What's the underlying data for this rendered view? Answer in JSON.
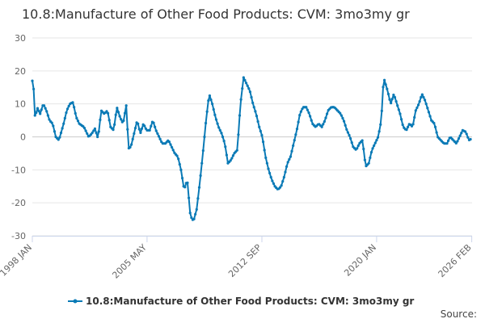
{
  "chart_data": {
    "type": "line",
    "title": "10.8:Manufacture of Other Food Products: CVM: 3mo3my gr",
    "xlabel": "",
    "ylabel": "",
    "x_start_year": 1998.0,
    "x_range": [
      1998.0,
      2026.1
    ],
    "ylim": [
      -30,
      30
    ],
    "y_ticks": [
      30,
      20,
      10,
      0,
      -10,
      -20,
      -30
    ],
    "x_ticks": [
      {
        "label": "1998 JAN",
        "year": 1998.0
      },
      {
        "label": "2005 MAY",
        "year": 2005.33
      },
      {
        "label": "2012 SEP",
        "year": 2012.67
      },
      {
        "label": "2020 JAN",
        "year": 2020.0
      },
      {
        "label": "2026 FEB",
        "year": 2026.08
      }
    ],
    "grid": true,
    "legend_position": "bottom",
    "series": [
      {
        "name": "10.8:Manufacture of Other Food Products: CVM: 3mo3my gr",
        "color": "#0a7ab6",
        "anchors": [
          [
            1998.0,
            17.0
          ],
          [
            1998.1,
            14.0
          ],
          [
            1998.18,
            5.0
          ],
          [
            1998.3,
            9.0
          ],
          [
            1998.5,
            7.0
          ],
          [
            1998.7,
            10.0
          ],
          [
            1998.9,
            8.0
          ],
          [
            1999.1,
            5.0
          ],
          [
            1999.3,
            4.0
          ],
          [
            1999.5,
            0.0
          ],
          [
            1999.7,
            -1.0
          ],
          [
            2000.0,
            4.0
          ],
          [
            2000.2,
            8.0
          ],
          [
            2000.4,
            10.0
          ],
          [
            2000.6,
            10.5
          ],
          [
            2000.8,
            6.0
          ],
          [
            2001.0,
            4.0
          ],
          [
            2001.3,
            3.0
          ],
          [
            2001.6,
            0.0
          ],
          [
            2001.8,
            1.0
          ],
          [
            2002.0,
            2.5
          ],
          [
            2002.2,
            -0.5
          ],
          [
            2002.4,
            8.0
          ],
          [
            2002.6,
            7.0
          ],
          [
            2002.8,
            8.0
          ],
          [
            2003.0,
            3.0
          ],
          [
            2003.2,
            2.0
          ],
          [
            2003.4,
            9.0
          ],
          [
            2003.6,
            6.0
          ],
          [
            2003.8,
            4.0
          ],
          [
            2004.0,
            9.5
          ],
          [
            2004.15,
            -3.5
          ],
          [
            2004.3,
            -3.0
          ],
          [
            2004.5,
            1.0
          ],
          [
            2004.7,
            5.0
          ],
          [
            2004.9,
            1.0
          ],
          [
            2005.1,
            4.0
          ],
          [
            2005.3,
            2.0
          ],
          [
            2005.5,
            2.0
          ],
          [
            2005.7,
            5.0
          ],
          [
            2005.9,
            2.0
          ],
          [
            2006.1,
            0.0
          ],
          [
            2006.3,
            -2.0
          ],
          [
            2006.5,
            -2.0
          ],
          [
            2006.7,
            -1.0
          ],
          [
            2006.9,
            -3.0
          ],
          [
            2007.1,
            -5.0
          ],
          [
            2007.3,
            -6.0
          ],
          [
            2007.5,
            -10.0
          ],
          [
            2007.7,
            -16.0
          ],
          [
            2007.9,
            -13.0
          ],
          [
            2008.1,
            -24.0
          ],
          [
            2008.3,
            -25.5
          ],
          [
            2008.5,
            -22.0
          ],
          [
            2008.7,
            -14.0
          ],
          [
            2008.9,
            -5.0
          ],
          [
            2009.1,
            5.0
          ],
          [
            2009.3,
            13.0
          ],
          [
            2009.5,
            10.0
          ],
          [
            2009.7,
            6.0
          ],
          [
            2009.9,
            3.0
          ],
          [
            2010.1,
            1.0
          ],
          [
            2010.3,
            -2.0
          ],
          [
            2010.5,
            -8.0
          ],
          [
            2010.7,
            -7.0
          ],
          [
            2010.9,
            -5.0
          ],
          [
            2011.1,
            -4.0
          ],
          [
            2011.3,
            10.0
          ],
          [
            2011.5,
            18.0
          ],
          [
            2011.7,
            16.0
          ],
          [
            2011.9,
            14.0
          ],
          [
            2012.1,
            10.0
          ],
          [
            2012.3,
            7.0
          ],
          [
            2012.5,
            3.0
          ],
          [
            2012.7,
            0.0
          ],
          [
            2012.9,
            -6.0
          ],
          [
            2013.1,
            -10.0
          ],
          [
            2013.3,
            -13.0
          ],
          [
            2013.5,
            -15.0
          ],
          [
            2013.7,
            -16.0
          ],
          [
            2013.9,
            -15.0
          ],
          [
            2014.1,
            -12.0
          ],
          [
            2014.3,
            -8.0
          ],
          [
            2014.5,
            -6.0
          ],
          [
            2014.7,
            -2.0
          ],
          [
            2014.9,
            2.0
          ],
          [
            2015.1,
            7.0
          ],
          [
            2015.3,
            9.0
          ],
          [
            2015.5,
            9.0
          ],
          [
            2015.7,
            7.0
          ],
          [
            2015.9,
            4.0
          ],
          [
            2016.1,
            3.0
          ],
          [
            2016.3,
            4.0
          ],
          [
            2016.5,
            3.0
          ],
          [
            2016.7,
            5.0
          ],
          [
            2016.9,
            8.0
          ],
          [
            2017.1,
            9.0
          ],
          [
            2017.3,
            9.0
          ],
          [
            2017.5,
            8.0
          ],
          [
            2017.7,
            7.0
          ],
          [
            2017.9,
            5.0
          ],
          [
            2018.1,
            2.0
          ],
          [
            2018.3,
            0.0
          ],
          [
            2018.5,
            -3.0
          ],
          [
            2018.7,
            -4.0
          ],
          [
            2018.9,
            -2.0
          ],
          [
            2019.1,
            -1.0
          ],
          [
            2019.3,
            -9.0
          ],
          [
            2019.5,
            -8.0
          ],
          [
            2019.7,
            -4.0
          ],
          [
            2019.9,
            -2.0
          ],
          [
            2020.1,
            0.0
          ],
          [
            2020.3,
            5.0
          ],
          [
            2020.45,
            18.0
          ],
          [
            2020.7,
            14.0
          ],
          [
            2020.9,
            10.0
          ],
          [
            2021.1,
            13.0
          ],
          [
            2021.3,
            10.0
          ],
          [
            2021.5,
            7.0
          ],
          [
            2021.7,
            3.0
          ],
          [
            2021.9,
            2.0
          ],
          [
            2022.1,
            4.0
          ],
          [
            2022.3,
            3.0
          ],
          [
            2022.5,
            8.0
          ],
          [
            2022.7,
            10.0
          ],
          [
            2022.9,
            13.0
          ],
          [
            2023.1,
            11.0
          ],
          [
            2023.3,
            8.0
          ],
          [
            2023.5,
            5.0
          ],
          [
            2023.7,
            4.0
          ],
          [
            2023.9,
            0.0
          ],
          [
            2024.1,
            -1.0
          ],
          [
            2024.3,
            -2.0
          ],
          [
            2024.5,
            -2.0
          ],
          [
            2024.7,
            0.0
          ],
          [
            2024.9,
            -1.0
          ],
          [
            2025.1,
            -2.0
          ],
          [
            2025.3,
            0.0
          ],
          [
            2025.5,
            2.0
          ],
          [
            2025.7,
            1.5
          ],
          [
            2025.9,
            -1.0
          ],
          [
            2026.08,
            -0.5
          ]
        ]
      }
    ]
  },
  "legend": {
    "label": "10.8:Manufacture of Other Food Products: CVM: 3mo3my gr"
  },
  "source": {
    "label": "Source:"
  }
}
